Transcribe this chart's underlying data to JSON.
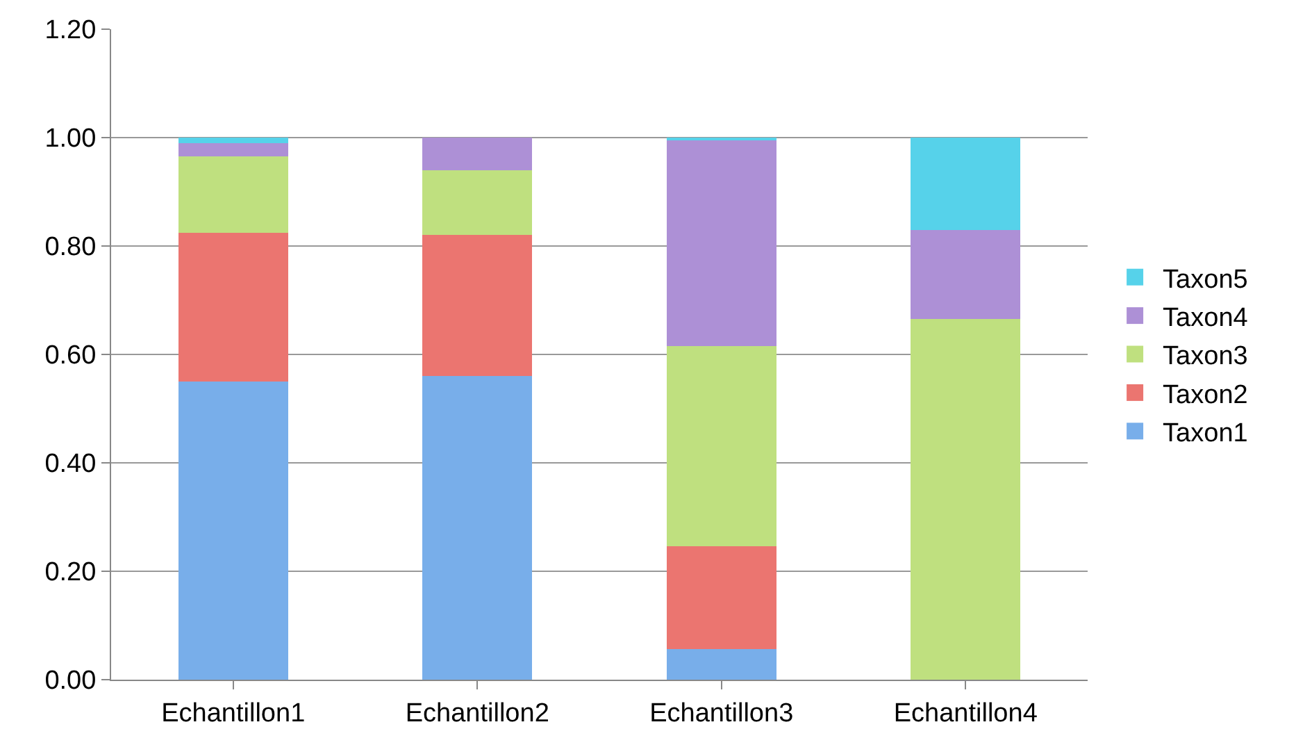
{
  "chart_data": {
    "type": "bar",
    "stacked": true,
    "categories": [
      "Echantillon1",
      "Echantillon2",
      "Echantillon3",
      "Echantillon4"
    ],
    "series": [
      {
        "name": "Taxon1",
        "color": "#78aeea",
        "values": [
          0.55,
          0.56,
          0.056,
          0
        ]
      },
      {
        "name": "Taxon2",
        "color": "#eb7570",
        "values": [
          0.275,
          0.26,
          0.19,
          0
        ]
      },
      {
        "name": "Taxon3",
        "color": "#bfe07f",
        "values": [
          0.14,
          0.12,
          0.37,
          0.665
        ]
      },
      {
        "name": "Taxon4",
        "color": "#ad90d6",
        "values": [
          0.025,
          0.06,
          0.38,
          0.165
        ]
      },
      {
        "name": "Taxon5",
        "color": "#56d2ea",
        "values": [
          0.01,
          0,
          0.004,
          0.17
        ]
      }
    ],
    "ylim": [
      0,
      1.2
    ],
    "yticks": [
      {
        "value": 0,
        "label": "0.00"
      },
      {
        "value": 0.2,
        "label": "0.20"
      },
      {
        "value": 0.4,
        "label": "0.40"
      },
      {
        "value": 0.6,
        "label": "0.60"
      },
      {
        "value": 0.8,
        "label": "0.80"
      },
      {
        "value": 1.0,
        "label": "1.00"
      },
      {
        "value": 1.2,
        "label": "1.20"
      }
    ],
    "grid": "y",
    "legend": "right"
  }
}
